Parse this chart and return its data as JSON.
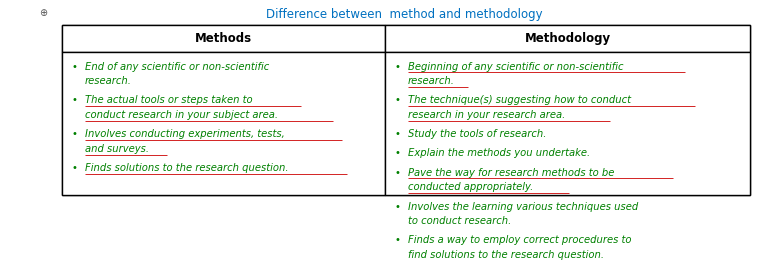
{
  "title": "Difference between  method and methodology",
  "title_color": "#0070C0",
  "col1_header": "Methods",
  "col2_header": "Methodology",
  "header_text_color": "#000000",
  "body_text_color": "#008000",
  "col1_bullets": [
    [
      "End of any scientific or non-scientific",
      "research."
    ],
    [
      "The actual tools or steps taken to",
      "conduct research in your subject area."
    ],
    [
      "Involves conducting experiments, tests,",
      "and surveys."
    ],
    [
      "Finds solutions to the research question."
    ]
  ],
  "col2_bullets": [
    [
      "Beginning of any scientific or non-scientific",
      "research."
    ],
    [
      "The technique(s) suggesting how to conduct",
      "research in your research area."
    ],
    [
      "Study the tools of research."
    ],
    [
      "Explain the methods you undertake."
    ],
    [
      "Pave the way for research methods to be",
      "conducted appropriately."
    ],
    [
      "Involves the learning various techniques used",
      "to conduct research."
    ],
    [
      "Finds a way to employ correct procedures to",
      "find solutions to the research question."
    ]
  ],
  "col1_underlined": [
    false,
    true,
    true,
    true
  ],
  "col2_underlined": [
    true,
    true,
    false,
    false,
    true,
    true,
    true
  ],
  "figsize": [
    7.63,
    2.63
  ],
  "dpi": 100,
  "bg_color": "#FFFFFF",
  "border_color": "#000000",
  "font_size": 7.2,
  "header_font_size": 8.5
}
